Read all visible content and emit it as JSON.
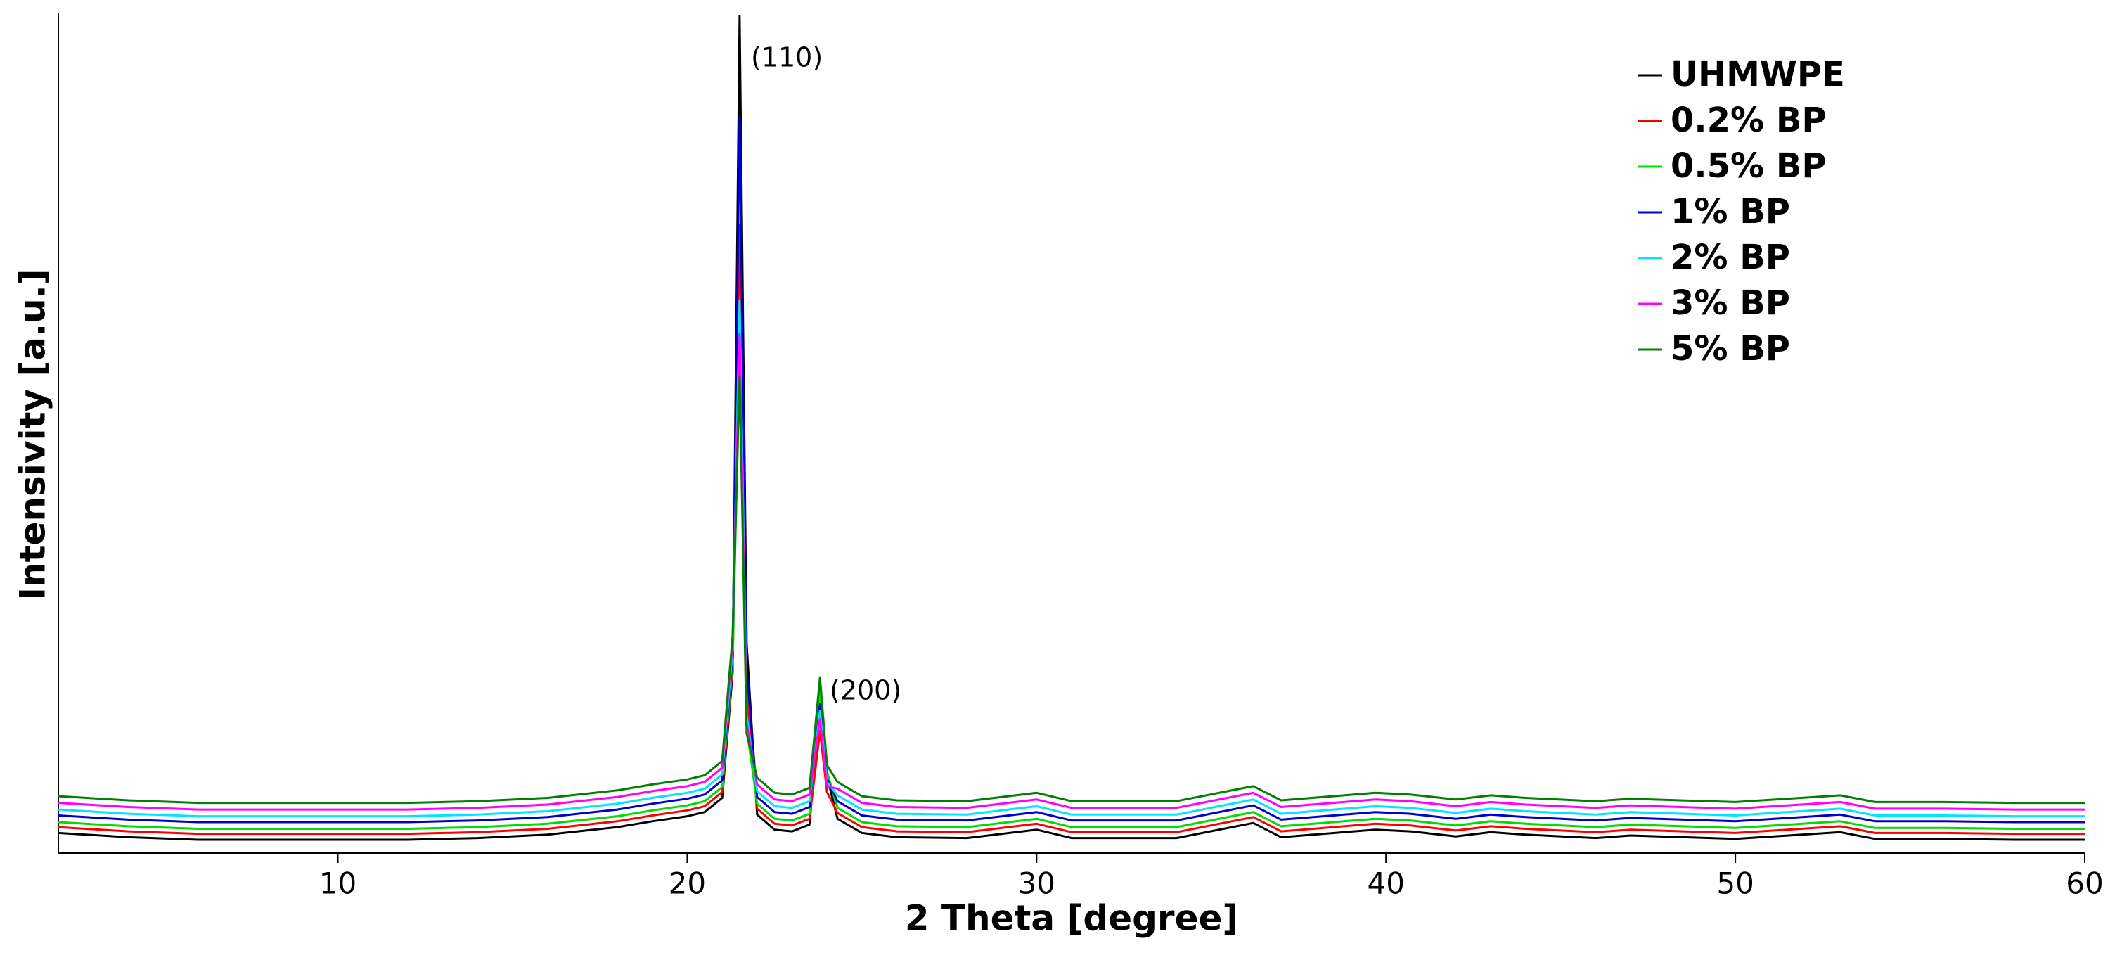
{
  "chart_data": {
    "type": "line",
    "x_label": "2 Theta [degree]",
    "y_label": "Intensivity [a.u.]",
    "x": [
      2,
      4,
      6,
      8,
      10,
      12,
      14,
      16,
      18,
      19,
      20,
      20.5,
      21,
      21.3,
      21.5,
      21.7,
      22,
      22.5,
      23,
      23.5,
      23.8,
      24,
      24.3,
      25,
      26,
      28,
      30,
      31,
      34,
      36.2,
      37,
      39.7,
      40.7,
      42,
      43,
      44,
      46,
      47,
      50,
      53,
      54,
      56,
      58,
      60
    ],
    "series": [
      {
        "name": "UHMWPE",
        "color": "#000000",
        "values": [
          2.4,
          1.9,
          1.6,
          1.6,
          1.6,
          1.6,
          1.8,
          2.2,
          3.1,
          3.8,
          4.4,
          4.9,
          6.6,
          21.6,
          100,
          25,
          4.6,
          2.8,
          2.6,
          3.4,
          18.4,
          9.2,
          4.1,
          2.4,
          1.9,
          1.8,
          2.8,
          1.8,
          1.8,
          3.6,
          1.9,
          2.8,
          2.6,
          2,
          2.5,
          2.2,
          1.8,
          2.1,
          1.7,
          2.5,
          1.7,
          1.7,
          1.6,
          1.6
        ]
      },
      {
        "name": "0.2% BP",
        "color": "#ff0000",
        "values": [
          3.1,
          2.6,
          2.3,
          2.3,
          2.3,
          2.3,
          2.5,
          2.9,
          3.8,
          4.5,
          5.1,
          5.6,
          7.3,
          22.3,
          75,
          18.8,
          5.3,
          3.5,
          3.3,
          4.1,
          14.6,
          7.3,
          4.8,
          3.1,
          2.6,
          2.5,
          3.5,
          2.5,
          2.5,
          4.3,
          2.6,
          3.5,
          3.3,
          2.7,
          3.2,
          2.9,
          2.5,
          2.8,
          2.4,
          3.2,
          2.4,
          2.4,
          2.3,
          2.3
        ]
      },
      {
        "name": "0.5% BP",
        "color": "#00dd00",
        "values": [
          3.7,
          3.2,
          2.9,
          2.9,
          2.9,
          2.9,
          3.1,
          3.5,
          4.4,
          5.1,
          5.7,
          6.2,
          7.9,
          22.9,
          60,
          15,
          5.9,
          4.1,
          3.9,
          4.7,
          19.4,
          9.7,
          5.4,
          3.7,
          3.2,
          3.1,
          4.1,
          3.1,
          3.1,
          4.9,
          3.2,
          4.1,
          3.9,
          3.3,
          3.8,
          3.5,
          3.1,
          3.4,
          3,
          3.8,
          3,
          3,
          2.9,
          2.9
        ]
      },
      {
        "name": "1% BP",
        "color": "#0000cc",
        "values": [
          4.5,
          4,
          3.7,
          3.7,
          3.7,
          3.7,
          3.9,
          4.3,
          5.2,
          5.9,
          6.5,
          7,
          8.7,
          23.7,
          88,
          22,
          6.7,
          4.9,
          4.7,
          5.5,
          17.8,
          8.9,
          6.2,
          4.5,
          4,
          3.9,
          4.9,
          3.9,
          3.9,
          5.7,
          4,
          4.9,
          4.7,
          4.1,
          4.6,
          4.3,
          3.9,
          4.2,
          3.8,
          4.6,
          3.8,
          3.8,
          3.7,
          3.7
        ]
      },
      {
        "name": "2% BP",
        "color": "#00e5ff",
        "values": [
          5.2,
          4.7,
          4.4,
          4.4,
          4.4,
          4.4,
          4.6,
          5,
          5.9,
          6.6,
          7.2,
          7.7,
          9.4,
          24.4,
          66,
          16.5,
          7.4,
          5.6,
          5.4,
          6.2,
          17,
          8.5,
          6.9,
          5.2,
          4.7,
          4.6,
          5.6,
          4.6,
          4.6,
          6.4,
          4.7,
          5.6,
          5.4,
          4.8,
          5.3,
          5,
          4.6,
          4.9,
          4.5,
          5.3,
          4.5,
          4.5,
          4.4,
          4.4
        ]
      },
      {
        "name": "3% BP",
        "color": "#ff00ff",
        "values": [
          6,
          5.5,
          5.2,
          5.2,
          5.2,
          5.2,
          5.4,
          5.8,
          6.7,
          7.4,
          8,
          8.5,
          10.2,
          25.2,
          62,
          15.5,
          8.2,
          6.4,
          6.2,
          7,
          16,
          8,
          7.7,
          6,
          5.5,
          5.4,
          6.4,
          5.4,
          5.4,
          7.2,
          5.5,
          6.4,
          6.2,
          5.6,
          6.1,
          5.8,
          5.4,
          5.7,
          5.3,
          6.1,
          5.3,
          5.3,
          5.2,
          5.2
        ]
      },
      {
        "name": "5% BP",
        "color": "#008000",
        "values": [
          6.8,
          6.3,
          6,
          6,
          6,
          6,
          6.2,
          6.6,
          7.5,
          8.2,
          8.8,
          9.3,
          11,
          26,
          57,
          14.3,
          9,
          7.2,
          7,
          7.8,
          21,
          10.5,
          8.5,
          6.8,
          6.3,
          6.2,
          7.2,
          6.2,
          6.2,
          8,
          6.3,
          7.2,
          7,
          6.4,
          6.9,
          6.6,
          6.2,
          6.5,
          6.1,
          6.9,
          6.1,
          6.1,
          6,
          6
        ]
      }
    ],
    "annotations": [
      "(110)",
      "(200)"
    ],
    "xlim": [
      2,
      60
    ],
    "xticks": [
      10,
      20,
      30,
      40,
      50,
      60
    ],
    "ylim": [
      0,
      100
    ],
    "legend": "upper right"
  }
}
